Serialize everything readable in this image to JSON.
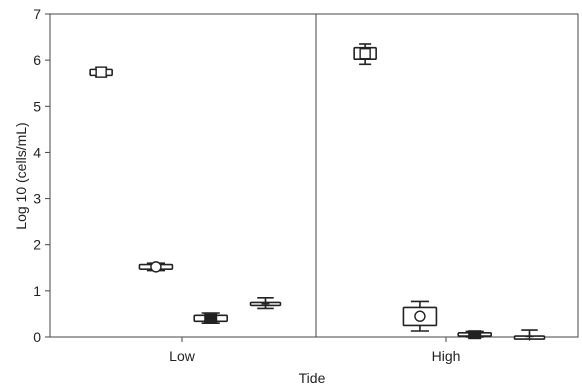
{
  "chart_data": {
    "type": "box",
    "xlabel": "Tide",
    "ylabel": "Log 10 (cells/mL)",
    "ylim": [
      0,
      7
    ],
    "yticks": [
      "0",
      "1",
      "2",
      "3",
      "4",
      "5",
      "6",
      "7"
    ],
    "categories": [
      "Low",
      "High"
    ],
    "groups": [
      {
        "category": "Low",
        "boxes": [
          {
            "whisker_low": 5.64,
            "q1": 5.67,
            "median": 5.74,
            "q3": 5.8,
            "whisker_high": 5.84,
            "marker": "square"
          },
          {
            "whisker_low": 1.44,
            "q1": 1.47,
            "median": 1.52,
            "q3": 1.57,
            "whisker_high": 1.6,
            "marker": "circle"
          },
          {
            "whisker_low": 0.3,
            "q1": 0.34,
            "median": 0.41,
            "q3": 0.47,
            "whisker_high": 0.52,
            "marker": "filled-square"
          },
          {
            "whisker_low": 0.62,
            "q1": 0.69,
            "median": 0.72,
            "q3": 0.75,
            "whisker_high": 0.85,
            "marker": "plus"
          }
        ]
      },
      {
        "category": "High",
        "boxes": [
          {
            "whisker_low": 5.91,
            "q1": 6.02,
            "median": 6.14,
            "q3": 6.27,
            "whisker_high": 6.35,
            "marker": "square"
          },
          {
            "whisker_low": 0.13,
            "q1": 0.25,
            "median": 0.45,
            "q3": 0.64,
            "whisker_high": 0.77,
            "marker": "circle"
          },
          {
            "whisker_low": 0.0,
            "q1": 0.02,
            "median": 0.05,
            "q3": 0.09,
            "whisker_high": 0.12,
            "marker": "filled-square"
          },
          {
            "whisker_low": 0.0,
            "q1": 0.0,
            "median": 0.01,
            "q3": 0.02,
            "whisker_high": 0.15,
            "marker": "plus"
          }
        ]
      }
    ],
    "grid": false,
    "legend": "none"
  }
}
